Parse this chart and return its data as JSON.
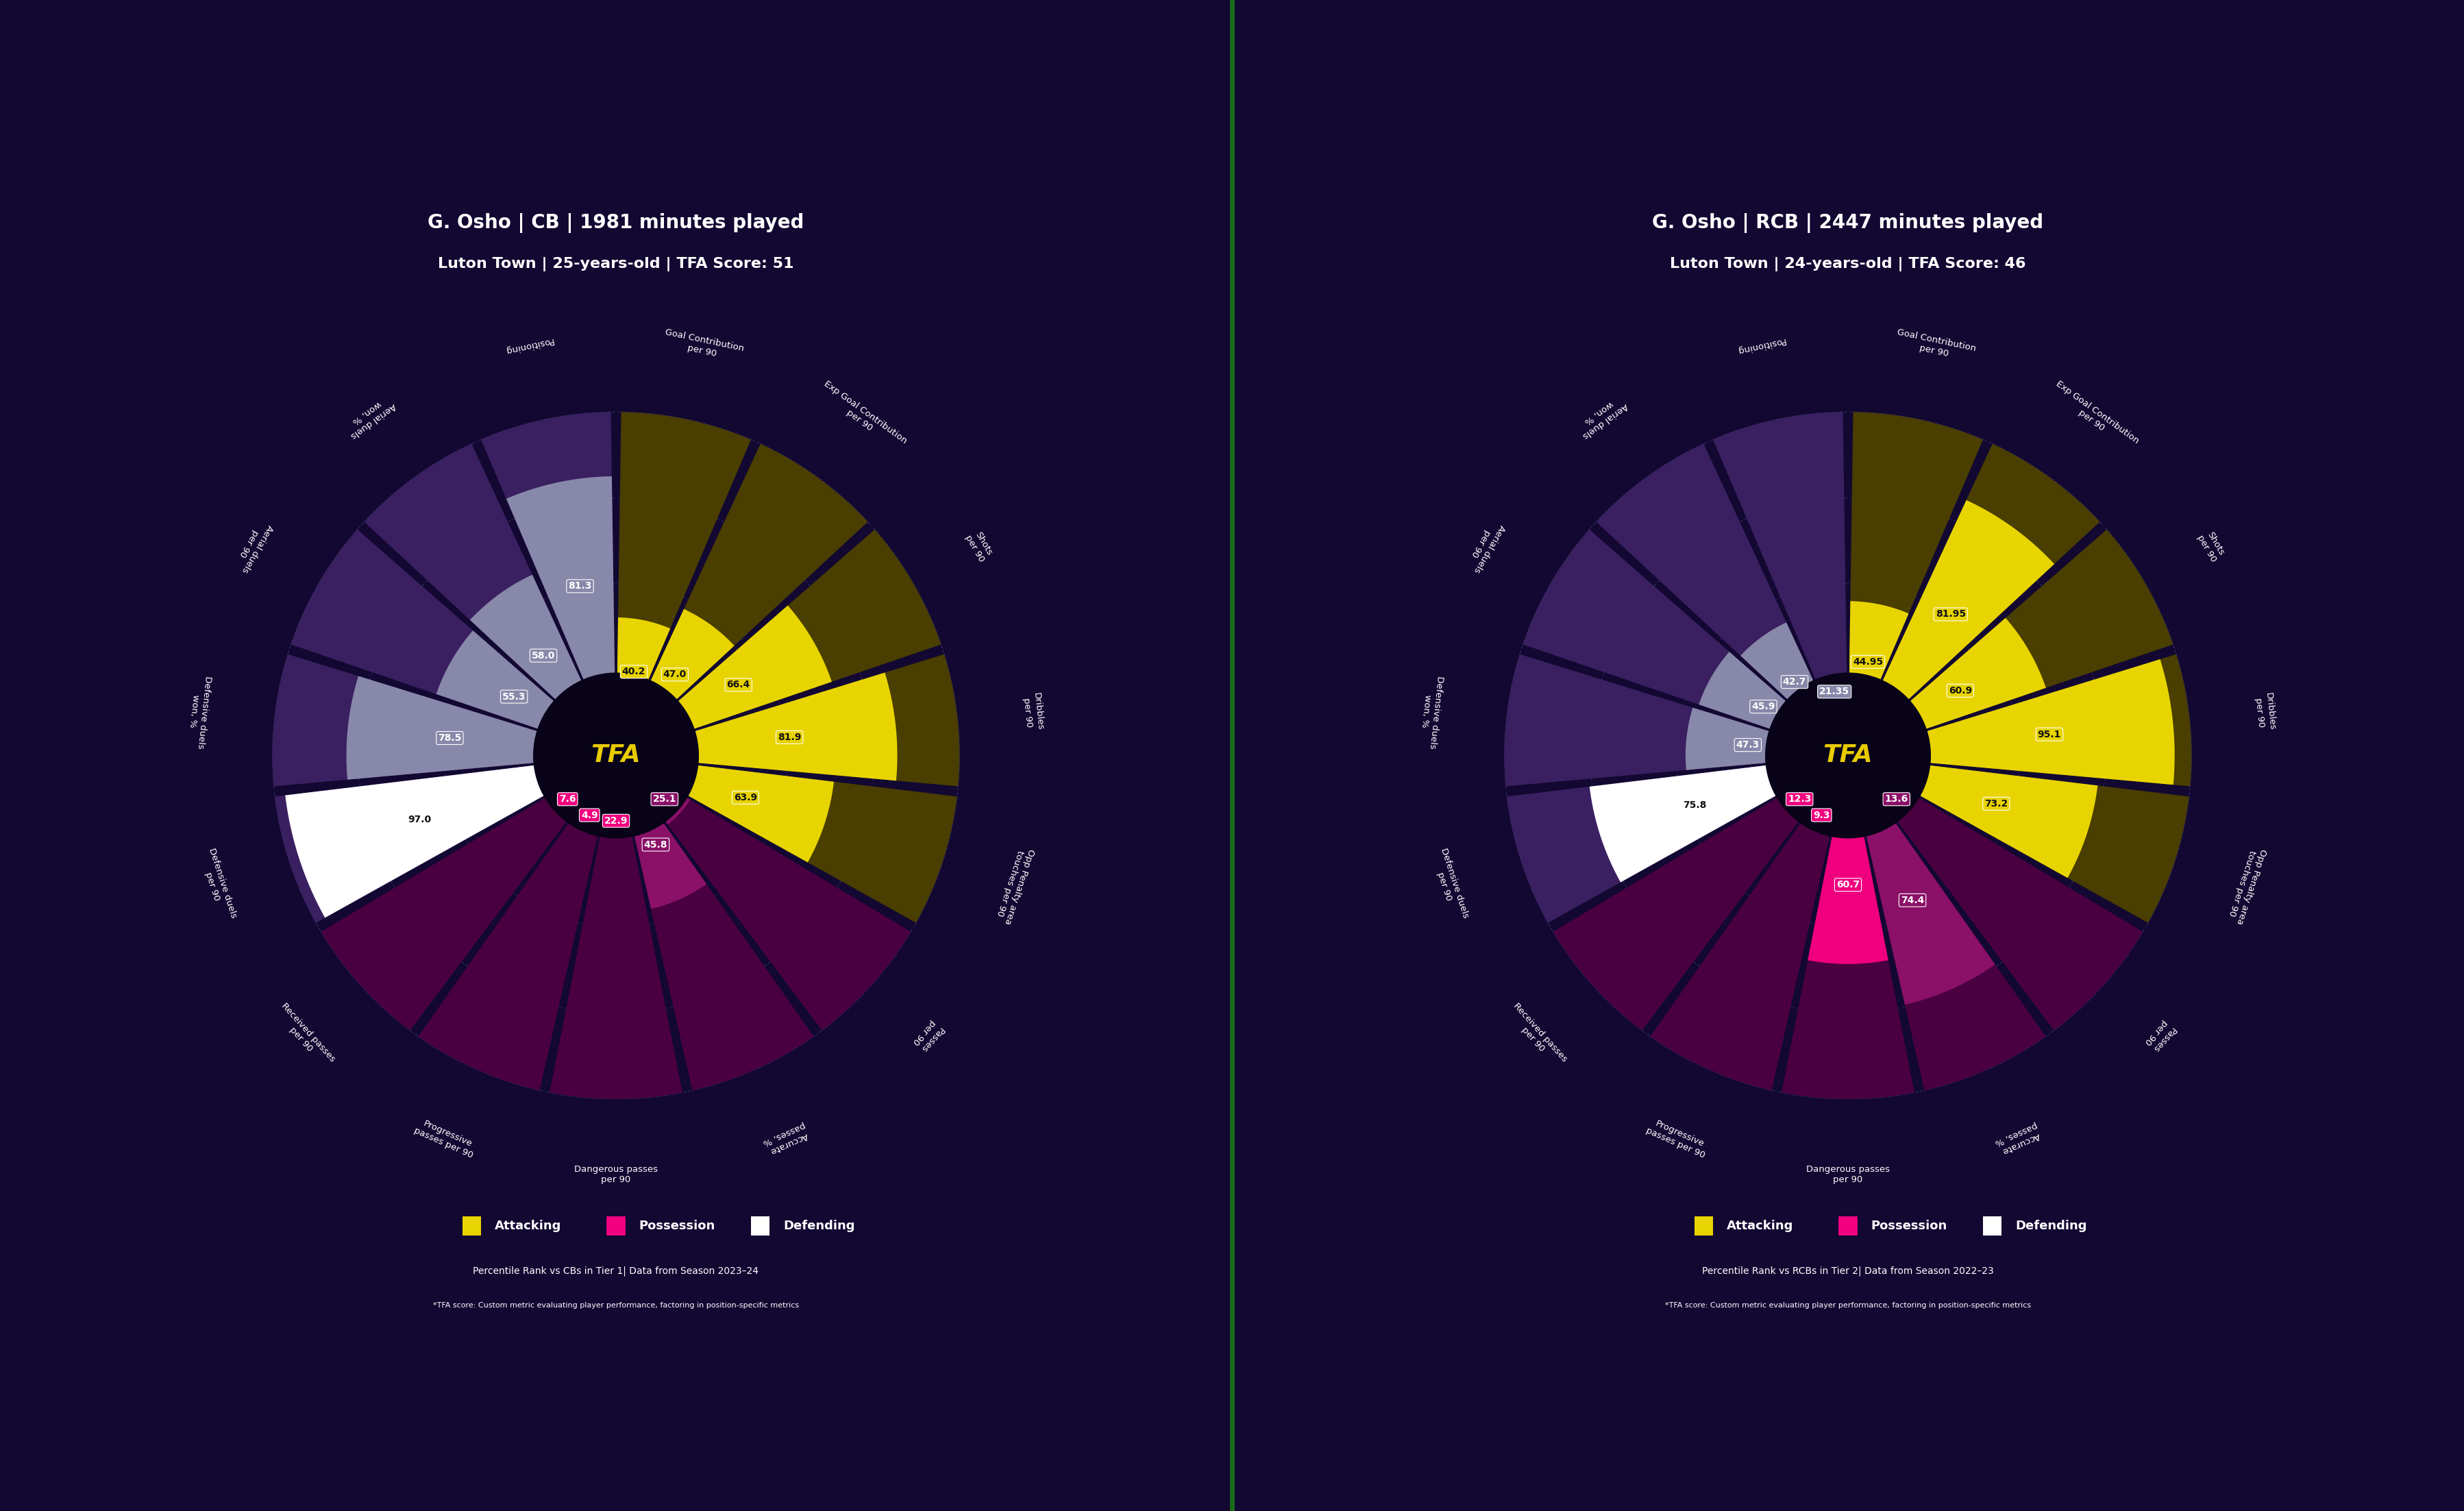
{
  "background_color": "#120832",
  "fig_width": 35.96,
  "fig_height": 22.05,
  "divider_color": "#1a6b1a",
  "charts": [
    {
      "title_line1": "G. Osho | CB | 1981 minutes played",
      "title_line2": "Luton Town | 25-years-old | TFA Score: 51",
      "subtitle": "Percentile Rank vs CBs in Tier 1| Data from Season 2023–24",
      "footnote": "*TFA score: Custom metric evaluating player performance, factoring in position-specific metrics",
      "categories": [
        "Goal Contribution\nper 90",
        "Exp Goal Contribution\nper 90",
        "Shots\nper 90",
        "Dribbles\nper 90",
        "Opp Penalty area\ntouches per 90",
        "Passes\nper 90",
        "Accurate\npasses, %",
        "Dangerous passes\nper 90",
        "Progressive\npasses per 90",
        "Received passes\nper 90",
        "Defensive duels\nper 90",
        "Defensive duels\nwon, %",
        "Aerial duels\nper 90",
        "Aerial duels\nwon, %",
        "Positioning"
      ],
      "values": [
        40.2,
        47.0,
        66.4,
        81.9,
        63.9,
        25.1,
        45.8,
        22.9,
        4.9,
        7.6,
        97.0,
        78.5,
        55.3,
        58.0,
        81.3
      ],
      "category_types": [
        "attacking",
        "attacking",
        "attacking",
        "attacking",
        "attacking",
        "possession_dark",
        "possession_dark",
        "possession_bright",
        "possession_bright",
        "possession_bright",
        "defending_white",
        "defending_gray",
        "defending_gray",
        "defending_gray",
        "defending_gray"
      ]
    },
    {
      "title_line1": "G. Osho | RCB | 2447 minutes played",
      "title_line2": "Luton Town | 24-years-old | TFA Score: 46",
      "subtitle": "Percentile Rank vs RCBs in Tier 2| Data from Season 2022–23",
      "footnote": "*TFA score: Custom metric evaluating player performance, factoring in position-specific metrics",
      "categories": [
        "Goal Contribution\nper 90",
        "Exp Goal Contribution\nper 90",
        "Shots\nper 90",
        "Dribbles\nper 90",
        "Opp Penalty area\ntouches per 90",
        "Passes\nper 90",
        "Accurate\npasses, %",
        "Dangerous passes\nper 90",
        "Progressive\npasses per 90",
        "Received passes\nper 90",
        "Defensive duels\nper 90",
        "Defensive duels\nwon, %",
        "Aerial duels\nper 90",
        "Aerial duels\nwon, %",
        "Positioning"
      ],
      "values": [
        44.95,
        81.95,
        60.9,
        95.1,
        73.2,
        13.6,
        74.4,
        60.7,
        9.3,
        12.3,
        75.8,
        47.3,
        45.9,
        42.7,
        21.35
      ],
      "category_types": [
        "attacking",
        "attacking",
        "attacking",
        "attacking",
        "attacking",
        "possession_dark",
        "possession_dark",
        "possession_bright",
        "possession_bright",
        "possession_bright",
        "defending_white",
        "defending_gray",
        "defending_gray",
        "defending_gray",
        "defending_gray"
      ]
    }
  ],
  "colors": {
    "attacking_bg": "#4a3e00",
    "attacking_val": "#e8d400",
    "possession_dark_bg": "#4a0040",
    "possession_dark_val": "#8b1068",
    "possession_bright_bg": "#4a0040",
    "possession_bright_val": "#f0007e",
    "defending_white_bg": "#3a2060",
    "defending_white_val": "#ffffff",
    "defending_gray_bg": "#3a2060",
    "defending_gray_val": "#8888aa",
    "ref_circle": "#6060a0",
    "separator": "#120832",
    "center_circle": "#080318",
    "tfa_text": "#e8cc00",
    "label_text_dark": "#111111",
    "label_text_light": "#ffffff"
  },
  "legend_items": [
    {
      "label": "Attacking",
      "color": "#e8d400"
    },
    {
      "label": "Possession",
      "color": "#f0007e"
    },
    {
      "label": "Defending",
      "color": "#ffffff"
    }
  ]
}
